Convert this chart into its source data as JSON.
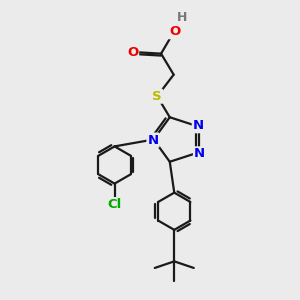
{
  "bg_color": "#ebebeb",
  "bond_color": "#1a1a1a",
  "bond_width": 1.6,
  "atom_colors": {
    "N": "#0000ee",
    "O": "#ee0000",
    "S": "#bbbb00",
    "Cl": "#00aa00",
    "H": "#777777",
    "C": "#1a1a1a"
  },
  "font_size_atom": 9.5,
  "figsize": [
    3.0,
    3.0
  ],
  "dpi": 100
}
